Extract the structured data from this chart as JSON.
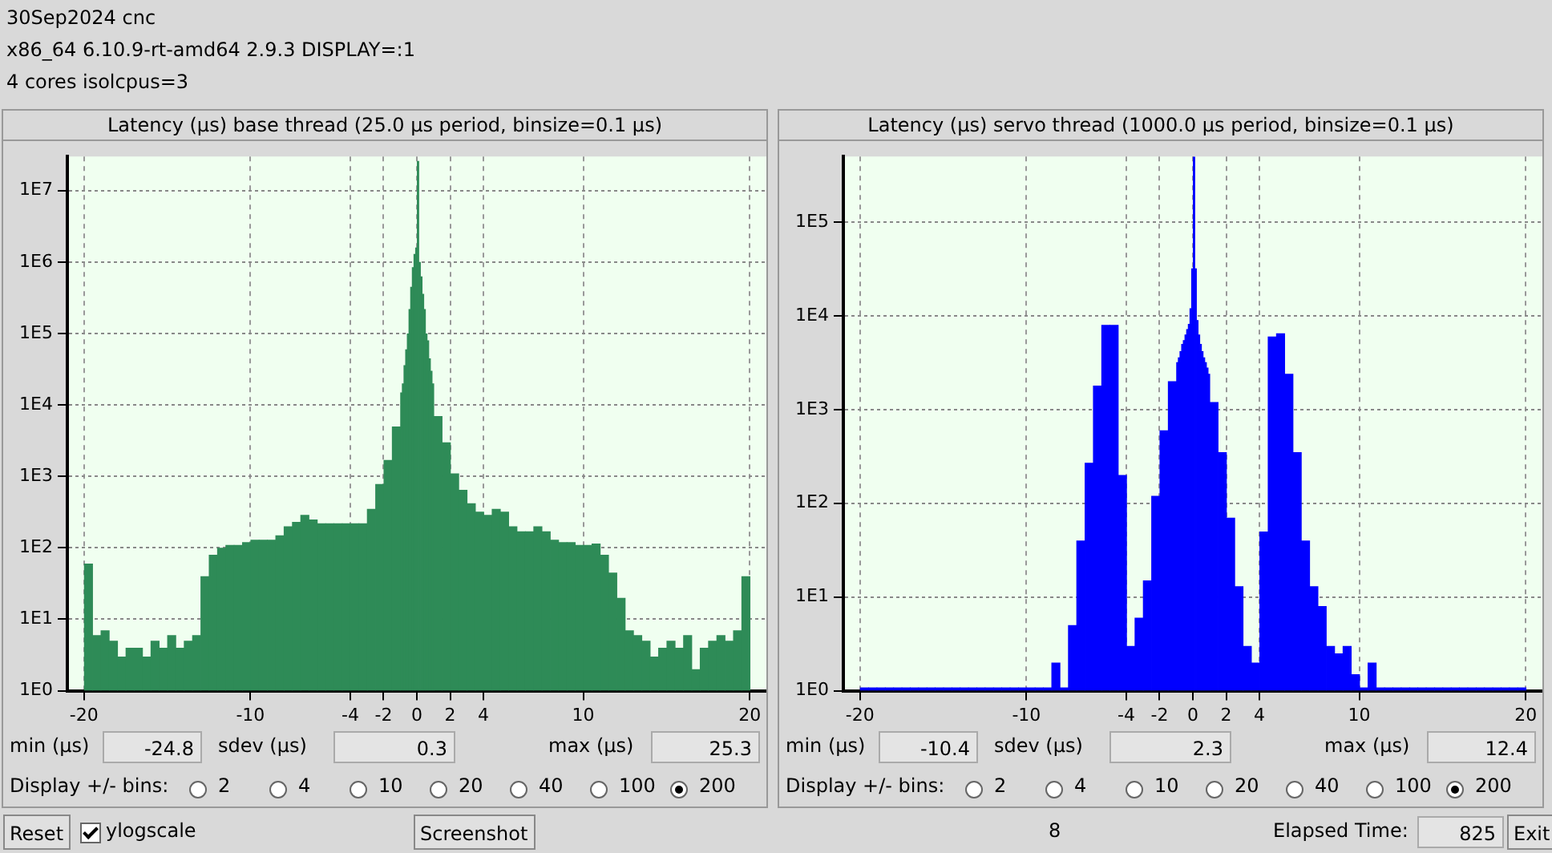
{
  "chart_data": [
    {
      "type": "other",
      "annotations": [
        "30Sep2024 cnc",
        "x86_64  6.10.9-rt-amd64  2.9.3  DISPLAY=:1",
        "4 cores  isolcpus=3"
      ]
    },
    {
      "type": "histogram",
      "title": "Latency (µs) base thread (25.0 µs period, binsize=0.1 µs)",
      "color": "#2e8b57",
      "log": true,
      "grid": true,
      "bins": [
        -20,
        -19.5,
        -19,
        -18.5,
        -18,
        -17.5,
        -17,
        -16.5,
        -16,
        -15.5,
        -15,
        -14.5,
        -14,
        -13.5,
        -13,
        -12.5,
        -12,
        -11.5,
        -11,
        -10.5,
        -10,
        -9.5,
        -9,
        -8.5,
        -8,
        -7.5,
        -7,
        -6.5,
        -6,
        -5.5,
        -5,
        -4.5,
        -4,
        -3.5,
        -3,
        -2.5,
        -2,
        -1.5,
        -1,
        -0.9,
        -0.8,
        -0.7,
        -0.6,
        -0.5,
        -0.4,
        -0.3,
        -0.2,
        -0.1,
        0,
        0.1,
        0.2,
        0.3,
        0.4,
        0.5,
        0.6,
        0.7,
        0.8,
        0.9,
        1,
        1.5,
        2,
        2.5,
        3,
        3.5,
        4,
        4.5,
        5,
        5.5,
        6,
        6.5,
        7,
        7.5,
        8,
        8.5,
        9,
        9.5,
        10,
        10.5,
        11,
        11.5,
        12,
        12.5,
        13,
        13.5,
        14,
        14.5,
        15,
        15.5,
        16,
        16.5,
        17,
        17.5,
        18,
        18.5,
        19,
        19.5,
        20
      ],
      "values": [
        60,
        6,
        7,
        5,
        3,
        4,
        4,
        3,
        5,
        4,
        6,
        4,
        5,
        6,
        40,
        80,
        100,
        110,
        110,
        120,
        130,
        130,
        130,
        150,
        200,
        230,
        290,
        250,
        220,
        220,
        220,
        220,
        220,
        220,
        350,
        780,
        1700,
        5000,
        15000,
        20000,
        36000,
        60000,
        100000,
        220000,
        450000,
        850000,
        1300000,
        1600000,
        26000000,
        1000000,
        630000,
        360000,
        220000,
        100000,
        80000,
        45000,
        30000,
        20000,
        7000,
        3000,
        1100,
        650,
        420,
        320,
        290,
        350,
        320,
        200,
        170,
        170,
        200,
        170,
        130,
        120,
        120,
        110,
        110,
        115,
        80,
        45,
        20,
        7,
        6,
        5,
        3,
        4,
        5,
        4,
        6,
        2,
        4,
        5,
        6,
        5,
        7,
        40
      ],
      "xlim": [
        -21,
        21
      ],
      "xticks": [
        -20,
        -10,
        -4,
        -2,
        0,
        2,
        4,
        10,
        20
      ],
      "ylim": [
        1,
        30000000
      ],
      "yticks": [
        {
          "value": 1,
          "label": "1E0"
        },
        {
          "value": 10,
          "label": "1E1"
        },
        {
          "value": 100,
          "label": "1E2"
        },
        {
          "value": 1000,
          "label": "1E3"
        },
        {
          "value": 10000,
          "label": "1E4"
        },
        {
          "value": 100000,
          "label": "1E5"
        },
        {
          "value": 1000000,
          "label": "1E6"
        },
        {
          "value": 10000000,
          "label": "1E7"
        }
      ],
      "annotations": [
        "min (µs)",
        "-24.8",
        "sdev (µs)",
        "0.3",
        "max (µs)",
        "25.3",
        "Display +/- bins:",
        "2",
        "4",
        "10",
        "20",
        "40",
        "100",
        "200"
      ]
    },
    {
      "type": "histogram",
      "title": "Latency (µs) servo thread (1000.0 µs period, binsize=0.1 µs)",
      "color": "#0000ff",
      "log": true,
      "grid": true,
      "bins": [
        -20,
        -19.5,
        -19,
        -18.5,
        -18,
        -17.5,
        -17,
        -16.5,
        -16,
        -15.5,
        -15,
        -14.5,
        -14,
        -13.5,
        -13,
        -12.5,
        -12,
        -11.5,
        -11,
        -10.5,
        -10,
        -9.5,
        -9,
        -8.5,
        -8,
        -7.5,
        -7,
        -6.5,
        -6,
        -5.5,
        -5,
        -4.5,
        -4,
        -3.5,
        -3,
        -2.5,
        -2,
        -1.5,
        -1,
        -0.9,
        -0.8,
        -0.7,
        -0.6,
        -0.5,
        -0.4,
        -0.3,
        -0.2,
        -0.1,
        0,
        0.1,
        0.2,
        0.3,
        0.4,
        0.5,
        0.6,
        0.7,
        0.8,
        0.9,
        1,
        1.5,
        2,
        2.5,
        3,
        3.5,
        4,
        4.5,
        5,
        5.5,
        6,
        6.5,
        7,
        7.5,
        8,
        8.5,
        9,
        9.5,
        10,
        10.5,
        11,
        11.5,
        12,
        12.5,
        13,
        13.5,
        14,
        14.5,
        15,
        15.5,
        16,
        16.5,
        17,
        17.5,
        18,
        18.5,
        19,
        19.5,
        20
      ],
      "values": [
        1,
        1,
        1,
        1,
        1,
        1,
        1,
        1,
        1,
        1,
        1,
        1,
        1,
        1,
        1,
        1,
        1,
        1,
        1,
        1,
        1,
        1,
        1,
        2,
        1,
        5,
        40,
        270,
        1800,
        8000,
        8000,
        200,
        3,
        6,
        15,
        120,
        600,
        2000,
        3200,
        3600,
        4200,
        5000,
        5500,
        6300,
        7200,
        8200,
        12000,
        32000,
        500000,
        32000,
        9000,
        6300,
        5000,
        4200,
        3600,
        3200,
        2800,
        2400,
        1200,
        350,
        70,
        13,
        3,
        2,
        50,
        6000,
        6500,
        2400,
        350,
        40,
        13,
        8,
        3,
        2.5,
        3,
        1.5,
        1,
        2,
        1,
        1,
        1,
        1,
        1,
        1,
        1,
        1,
        1,
        1,
        1,
        1,
        1,
        1,
        1,
        1,
        1,
        1
      ],
      "xlim": [
        -21,
        21
      ],
      "xticks": [
        -20,
        -10,
        -4,
        -2,
        0,
        2,
        4,
        10,
        20
      ],
      "ylim": [
        1,
        500000
      ],
      "yticks": [
        {
          "value": 1,
          "label": "1E0"
        },
        {
          "value": 10,
          "label": "1E1"
        },
        {
          "value": 100,
          "label": "1E2"
        },
        {
          "value": 1000,
          "label": "1E3"
        },
        {
          "value": 10000,
          "label": "1E4"
        },
        {
          "value": 100000,
          "label": "1E5"
        }
      ],
      "annotations": [
        "min (µs)",
        "-10.4",
        "sdev (µs)",
        "2.3",
        "max (µs)",
        "12.4",
        "Display +/- bins:",
        "2",
        "4",
        "10",
        "20",
        "40",
        "100",
        "200"
      ]
    },
    {
      "type": "other",
      "annotations": [
        "Reset",
        "ylogscale",
        "Screenshot",
        "8",
        "Elapsed Time:",
        "825",
        "Exit"
      ]
    }
  ]
}
